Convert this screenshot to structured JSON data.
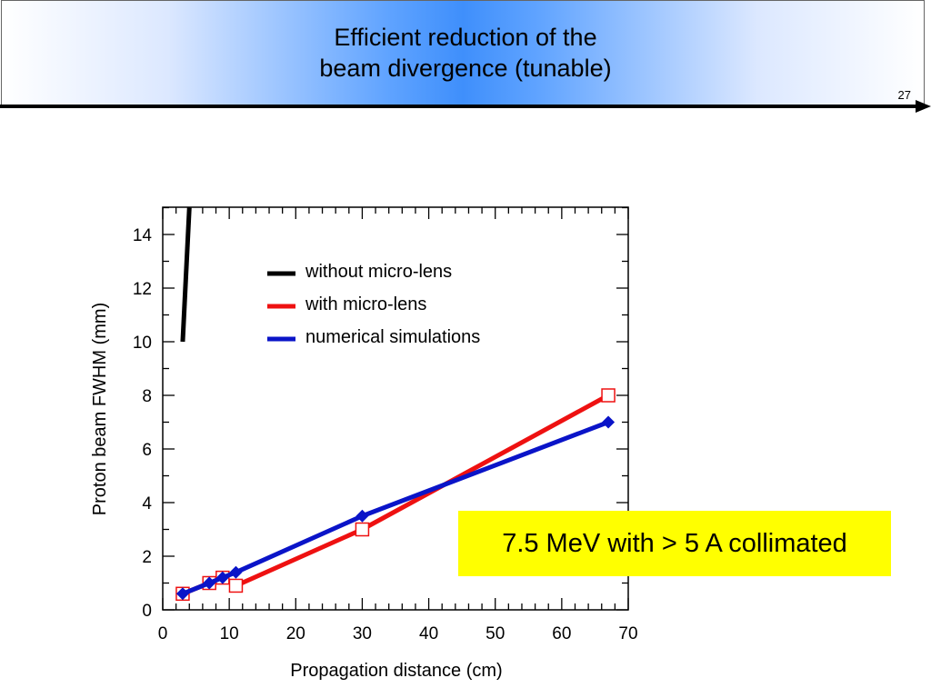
{
  "slide": {
    "title_line1": "Efficient reduction of the",
    "title_line2": "beam divergence (tunable)",
    "number": "27"
  },
  "callout": {
    "text": "7.5 MeV with > 5 A collimated",
    "color": "#ffff00"
  },
  "chart_data": {
    "type": "line",
    "xlabel": "Propagation distance (cm)",
    "ylabel": "Proton beam FWHM (mm)",
    "xlim": [
      0,
      70
    ],
    "ylim": [
      0,
      15
    ],
    "xticks": [
      0,
      10,
      20,
      30,
      40,
      50,
      60,
      70
    ],
    "yticks": [
      0,
      2,
      4,
      6,
      8,
      10,
      12,
      14
    ],
    "grid": false,
    "legend_position": "top-center",
    "series": [
      {
        "name": "without micro-lens",
        "color": "#000000",
        "marker": "none",
        "x": [
          3,
          4
        ],
        "y": [
          10,
          15
        ]
      },
      {
        "name": "with micro-lens",
        "color": "#ee1111",
        "marker": "open-square",
        "x": [
          3,
          7,
          9,
          11,
          30,
          67
        ],
        "y": [
          0.6,
          1.0,
          1.2,
          0.9,
          3.0,
          8.0
        ]
      },
      {
        "name": "numerical simulations",
        "color": "#0a14c8",
        "marker": "filled-diamond",
        "x": [
          3,
          7,
          9,
          11,
          30,
          67
        ],
        "y": [
          0.6,
          1.0,
          1.2,
          1.4,
          3.5,
          7.0
        ]
      }
    ]
  }
}
